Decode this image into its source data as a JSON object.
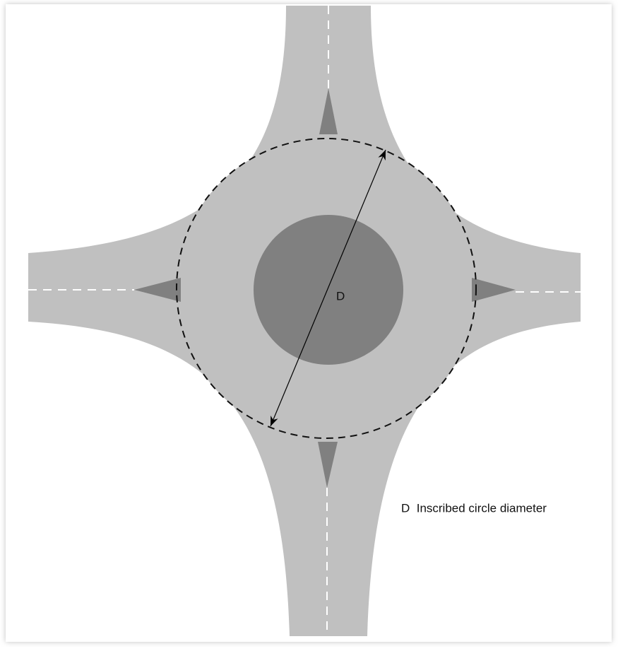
{
  "diagram": {
    "dimension_label": "D",
    "legend": "D  Inscribed circle diameter"
  }
}
